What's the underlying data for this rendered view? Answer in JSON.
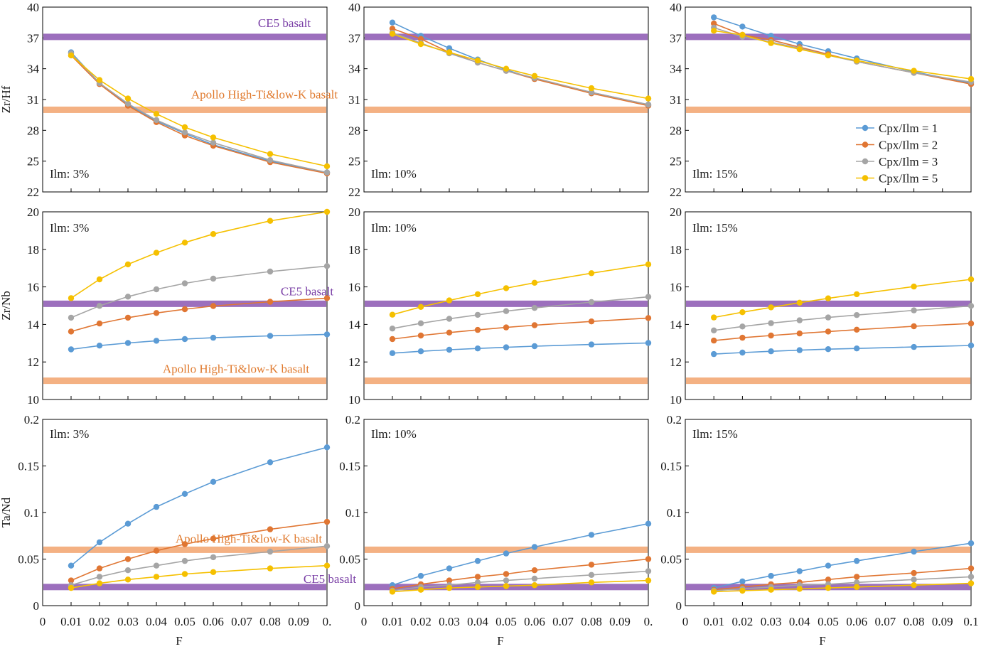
{
  "colors": {
    "cpx1": "#5b9bd5",
    "cpx2": "#e07633",
    "cpx3": "#a5a5a5",
    "cpx5": "#f5c000",
    "ce5": "#9c6fbd",
    "apollo": "#f4b183",
    "apollo_text": "#e07a2e",
    "ce5_text": "#7a3fa6"
  },
  "chart_data": {
    "type": "line",
    "x": [
      0.01,
      0.02,
      0.03,
      0.04,
      0.05,
      0.06,
      0.08,
      0.1
    ],
    "x_ticks": [
      "0",
      "0.01",
      "0.02",
      "0.03",
      "0.04",
      "0.05",
      "0.06",
      "0.07",
      "0.08",
      "0.09"
    ],
    "x_tick_end_labels": [
      "0.",
      "0.",
      "0.1"
    ],
    "xlim": [
      0,
      0.1
    ],
    "xlabel": "F",
    "legend": {
      "placement": "right, inside top-right panel",
      "series": [
        {
          "name": "Cpx/Ilm = 1",
          "color": "cpx1"
        },
        {
          "name": "Cpx/Ilm = 2",
          "color": "cpx2"
        },
        {
          "name": "Cpx/Ilm = 3",
          "color": "cpx3"
        },
        {
          "name": "Cpx/Ilm = 5",
          "color": "cpx5"
        }
      ]
    },
    "rows": [
      {
        "ylabel": "Zr/Hf",
        "ylim": [
          22,
          40
        ],
        "yticks": [
          "22",
          "25",
          "28",
          "31",
          "34",
          "37",
          "40"
        ],
        "references": [
          {
            "name": "CE5 basalt",
            "value": 37.1,
            "color": "ce5"
          },
          {
            "name": "Apollo High-Ti&low-K basalt",
            "value": 30,
            "color": "apollo"
          }
        ],
        "panels": [
          {
            "label": "Ilm: 3%",
            "series": [
              {
                "color": "cpx1",
                "values": [
                  35.6,
                  32.6,
                  30.5,
                  28.9,
                  27.7,
                  26.6,
                  25.0,
                  23.9
                ]
              },
              {
                "color": "cpx2",
                "values": [
                  35.3,
                  32.5,
                  30.4,
                  28.8,
                  27.5,
                  26.5,
                  24.9,
                  23.8
                ]
              },
              {
                "color": "cpx3",
                "values": [
                  35.5,
                  32.6,
                  30.6,
                  29.0,
                  27.8,
                  26.8,
                  25.1,
                  23.9
                ]
              },
              {
                "color": "cpx5",
                "values": [
                  35.3,
                  32.9,
                  31.1,
                  29.6,
                  28.3,
                  27.3,
                  25.7,
                  24.5
                ]
              }
            ]
          },
          {
            "label": "Ilm: 10%",
            "series": [
              {
                "color": "cpx1",
                "values": [
                  38.5,
                  37.2,
                  36.0,
                  34.9,
                  33.9,
                  33.0,
                  31.7,
                  30.5
                ]
              },
              {
                "color": "cpx2",
                "values": [
                  37.9,
                  36.9,
                  35.6,
                  34.6,
                  33.8,
                  33.0,
                  31.6,
                  30.4
                ]
              },
              {
                "color": "cpx3",
                "values": [
                  37.5,
                  36.5,
                  35.5,
                  34.6,
                  33.8,
                  33.1,
                  31.7,
                  30.5
                ]
              },
              {
                "color": "cpx5",
                "values": [
                  37.4,
                  36.4,
                  35.6,
                  34.8,
                  34.0,
                  33.3,
                  32.1,
                  31.1
                ]
              }
            ]
          },
          {
            "label": "Ilm: 15%",
            "series": [
              {
                "color": "cpx1",
                "values": [
                  39.0,
                  38.1,
                  37.2,
                  36.4,
                  35.7,
                  35.0,
                  33.7,
                  32.6
                ]
              },
              {
                "color": "cpx2",
                "values": [
                  38.4,
                  37.3,
                  36.8,
                  36.1,
                  35.4,
                  34.7,
                  33.6,
                  32.5
                ]
              },
              {
                "color": "cpx3",
                "values": [
                  38.0,
                  37.1,
                  36.6,
                  36.0,
                  35.3,
                  34.7,
                  33.6,
                  32.7
                ]
              },
              {
                "color": "cpx5",
                "values": [
                  37.7,
                  37.3,
                  36.5,
                  35.9,
                  35.3,
                  34.8,
                  33.8,
                  33.0
                ]
              }
            ]
          }
        ]
      },
      {
        "ylabel": "Zr/Nb",
        "ylim": [
          10,
          20
        ],
        "yticks": [
          "10",
          "12",
          "14",
          "16",
          "18",
          "20"
        ],
        "references": [
          {
            "name": "CE5 basalt",
            "value": 15.1,
            "color": "ce5"
          },
          {
            "name": "Apollo High-Ti&low-K basalt",
            "value": 11.0,
            "color": "apollo"
          }
        ],
        "panels": [
          {
            "label": "Ilm: 3%",
            "series": [
              {
                "color": "cpx1",
                "values": [
                  12.67,
                  12.87,
                  13.01,
                  13.13,
                  13.22,
                  13.29,
                  13.39,
                  13.47
                ]
              },
              {
                "color": "cpx2",
                "values": [
                  13.62,
                  14.05,
                  14.36,
                  14.61,
                  14.81,
                  14.98,
                  15.21,
                  15.4
                ]
              },
              {
                "color": "cpx3",
                "values": [
                  14.36,
                  14.99,
                  15.48,
                  15.87,
                  16.19,
                  16.44,
                  16.82,
                  17.11
                ]
              },
              {
                "color": "cpx5",
                "values": [
                  15.4,
                  16.4,
                  17.2,
                  17.82,
                  18.36,
                  18.82,
                  19.52,
                  20.0
                ]
              }
            ]
          },
          {
            "label": "Ilm: 10%",
            "series": [
              {
                "color": "cpx1",
                "values": [
                  12.47,
                  12.57,
                  12.65,
                  12.72,
                  12.78,
                  12.84,
                  12.93,
                  13.01
                ]
              },
              {
                "color": "cpx2",
                "values": [
                  13.22,
                  13.41,
                  13.57,
                  13.71,
                  13.84,
                  13.96,
                  14.16,
                  14.34
                ]
              },
              {
                "color": "cpx3",
                "values": [
                  13.78,
                  14.06,
                  14.3,
                  14.51,
                  14.71,
                  14.88,
                  15.19,
                  15.47
                ]
              },
              {
                "color": "cpx5",
                "values": [
                  14.52,
                  14.93,
                  15.28,
                  15.61,
                  15.93,
                  16.22,
                  16.73,
                  17.2
                ]
              }
            ]
          },
          {
            "label": "Ilm: 15%",
            "series": [
              {
                "color": "cpx1",
                "values": [
                  12.42,
                  12.5,
                  12.57,
                  12.63,
                  12.68,
                  12.72,
                  12.8,
                  12.88
                ]
              },
              {
                "color": "cpx2",
                "values": [
                  13.14,
                  13.29,
                  13.41,
                  13.52,
                  13.62,
                  13.72,
                  13.9,
                  14.05
                ]
              },
              {
                "color": "cpx3",
                "values": [
                  13.68,
                  13.89,
                  14.07,
                  14.22,
                  14.37,
                  14.5,
                  14.75,
                  14.99
                ]
              },
              {
                "color": "cpx5",
                "values": [
                  14.37,
                  14.65,
                  14.91,
                  15.16,
                  15.39,
                  15.61,
                  16.02,
                  16.4
                ]
              }
            ]
          }
        ]
      },
      {
        "ylabel": "Ta/Nd",
        "ylim": [
          0,
          0.2
        ],
        "yticks": [
          "0",
          "0.05",
          "0.1",
          "0.15",
          "0.2"
        ],
        "references": [
          {
            "name": "Apollo High-Ti&low-K basalt",
            "value": 0.06,
            "color": "apollo"
          },
          {
            "name": "CE5 basalt",
            "value": 0.02,
            "color": "ce5"
          }
        ],
        "panels": [
          {
            "label": "Ilm: 3%",
            "series": [
              {
                "color": "cpx1",
                "values": [
                  0.043,
                  0.068,
                  0.088,
                  0.106,
                  0.12,
                  0.133,
                  0.154,
                  0.17
                ]
              },
              {
                "color": "cpx2",
                "values": [
                  0.027,
                  0.04,
                  0.05,
                  0.059,
                  0.066,
                  0.072,
                  0.082,
                  0.09
                ]
              },
              {
                "color": "cpx3",
                "values": [
                  0.022,
                  0.031,
                  0.038,
                  0.043,
                  0.048,
                  0.052,
                  0.058,
                  0.064
                ]
              },
              {
                "color": "cpx5",
                "values": [
                  0.019,
                  0.024,
                  0.028,
                  0.031,
                  0.034,
                  0.036,
                  0.04,
                  0.043
                ]
              }
            ]
          },
          {
            "label": "Ilm: 10%",
            "series": [
              {
                "color": "cpx1",
                "values": [
                  0.022,
                  0.032,
                  0.04,
                  0.048,
                  0.056,
                  0.063,
                  0.076,
                  0.088
                ]
              },
              {
                "color": "cpx2",
                "values": [
                  0.018,
                  0.023,
                  0.027,
                  0.031,
                  0.034,
                  0.038,
                  0.044,
                  0.05
                ]
              },
              {
                "color": "cpx3",
                "values": [
                  0.016,
                  0.02,
                  0.022,
                  0.025,
                  0.027,
                  0.029,
                  0.033,
                  0.037
                ]
              },
              {
                "color": "cpx5",
                "values": [
                  0.015,
                  0.017,
                  0.019,
                  0.02,
                  0.021,
                  0.022,
                  0.025,
                  0.027
                ]
              }
            ]
          },
          {
            "label": "Ilm: 15%",
            "series": [
              {
                "color": "cpx1",
                "values": [
                  0.019,
                  0.026,
                  0.032,
                  0.037,
                  0.043,
                  0.048,
                  0.058,
                  0.067
                ]
              },
              {
                "color": "cpx2",
                "values": [
                  0.017,
                  0.02,
                  0.023,
                  0.025,
                  0.028,
                  0.031,
                  0.035,
                  0.04
                ]
              },
              {
                "color": "cpx3",
                "values": [
                  0.016,
                  0.018,
                  0.02,
                  0.022,
                  0.023,
                  0.025,
                  0.028,
                  0.031
                ]
              },
              {
                "color": "cpx5",
                "values": [
                  0.015,
                  0.016,
                  0.017,
                  0.018,
                  0.019,
                  0.02,
                  0.022,
                  0.024
                ]
              }
            ]
          }
        ]
      }
    ]
  }
}
